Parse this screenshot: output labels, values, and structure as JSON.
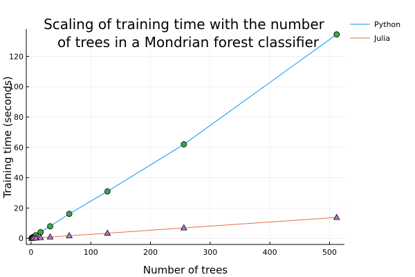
{
  "chart_data": {
    "type": "line",
    "title_lines": [
      "Scaling of training time with the number",
      "of trees in a Mondrian forest classifier"
    ],
    "xlabel": "Number of trees",
    "ylabel": "Training time (seconds)",
    "xlim": [
      -8,
      525
    ],
    "ylim": [
      -4,
      138
    ],
    "x_ticks": [
      0,
      100,
      200,
      300,
      400,
      500
    ],
    "y_ticks": [
      0,
      20,
      40,
      60,
      80,
      100,
      120
    ],
    "grid": true,
    "legend_position": "top-right",
    "series": [
      {
        "name": "Python",
        "color": "#009af9",
        "marker": "circle",
        "marker_color": "#3da44d",
        "x": [
          1,
          2,
          4,
          8,
          16,
          32,
          64,
          128,
          256,
          512
        ],
        "y": [
          0.26,
          0.52,
          1.05,
          2.1,
          4.1,
          8.0,
          16.2,
          31.0,
          62.0,
          134.5
        ]
      },
      {
        "name": "Julia",
        "color": "#e26f46",
        "marker": "triangle",
        "marker_color": "#c271d2",
        "x": [
          1,
          2,
          4,
          8,
          16,
          32,
          64,
          128,
          256,
          512
        ],
        "y": [
          0.03,
          0.05,
          0.1,
          0.22,
          0.45,
          0.9,
          1.75,
          3.4,
          6.9,
          13.8
        ]
      }
    ]
  }
}
